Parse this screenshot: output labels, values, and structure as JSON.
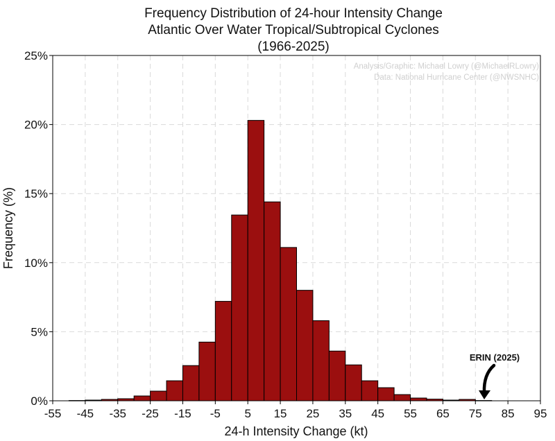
{
  "chart_data": {
    "type": "bar",
    "title": [
      "Frequency Distribution of 24-hour Intensity Change",
      "Atlantic Over Water Tropical/Subtropical Cyclones",
      "(1966-2025)"
    ],
    "xlabel": "24-h Intensity Change (kt)",
    "ylabel": "Frequency (%)",
    "xlim": [
      -55,
      95
    ],
    "ylim": [
      0,
      25
    ],
    "bin_width": 5,
    "x_ticks": [
      -55,
      -45,
      -35,
      -25,
      -15,
      -5,
      5,
      15,
      25,
      35,
      45,
      55,
      65,
      75,
      85,
      95
    ],
    "x_tick_labels": [
      "-55",
      "-45",
      "-35",
      "-25",
      "-15",
      "-5",
      "5",
      "15",
      "25",
      "35",
      "45",
      "55",
      "65",
      "75",
      "85",
      "95"
    ],
    "y_ticks": [
      0,
      5,
      10,
      15,
      20,
      25
    ],
    "y_tick_labels": [
      "0%",
      "5%",
      "10%",
      "15%",
      "20%",
      "25%"
    ],
    "grid": true,
    "bar_color": "#9b0f0f",
    "bins": [
      {
        "x0": -50,
        "x1": -45,
        "value": 0.02
      },
      {
        "x0": -45,
        "x1": -40,
        "value": 0.05
      },
      {
        "x0": -40,
        "x1": -35,
        "value": 0.1
      },
      {
        "x0": -35,
        "x1": -30,
        "value": 0.15
      },
      {
        "x0": -30,
        "x1": -25,
        "value": 0.35
      },
      {
        "x0": -25,
        "x1": -20,
        "value": 0.7
      },
      {
        "x0": -20,
        "x1": -15,
        "value": 1.45
      },
      {
        "x0": -15,
        "x1": -10,
        "value": 2.55
      },
      {
        "x0": -10,
        "x1": -5,
        "value": 4.25
      },
      {
        "x0": -5,
        "x1": 0,
        "value": 7.2
      },
      {
        "x0": 0,
        "x1": 5,
        "value": 13.45
      },
      {
        "x0": 5,
        "x1": 10,
        "value": 20.3
      },
      {
        "x0": 10,
        "x1": 15,
        "value": 14.4
      },
      {
        "x0": 15,
        "x1": 20,
        "value": 11.1
      },
      {
        "x0": 20,
        "x1": 25,
        "value": 8.0
      },
      {
        "x0": 25,
        "x1": 30,
        "value": 5.8
      },
      {
        "x0": 30,
        "x1": 35,
        "value": 3.6
      },
      {
        "x0": 35,
        "x1": 40,
        "value": 2.6
      },
      {
        "x0": 40,
        "x1": 45,
        "value": 1.45
      },
      {
        "x0": 45,
        "x1": 50,
        "value": 0.95
      },
      {
        "x0": 50,
        "x1": 55,
        "value": 0.45
      },
      {
        "x0": 55,
        "x1": 60,
        "value": 0.2
      },
      {
        "x0": 60,
        "x1": 65,
        "value": 0.12
      },
      {
        "x0": 65,
        "x1": 70,
        "value": 0.05
      },
      {
        "x0": 70,
        "x1": 75,
        "value": 0.1
      },
      {
        "x0": 75,
        "x1": 80,
        "value": 0.02
      }
    ],
    "credits": [
      "Analysis/Graphic: Michael Lowry (@MichaelRLowry)",
      "Data: National Hurricane Center (@NWSNHC)"
    ],
    "annotation": {
      "text": "ERIN (2025)",
      "x": 77.5
    }
  }
}
